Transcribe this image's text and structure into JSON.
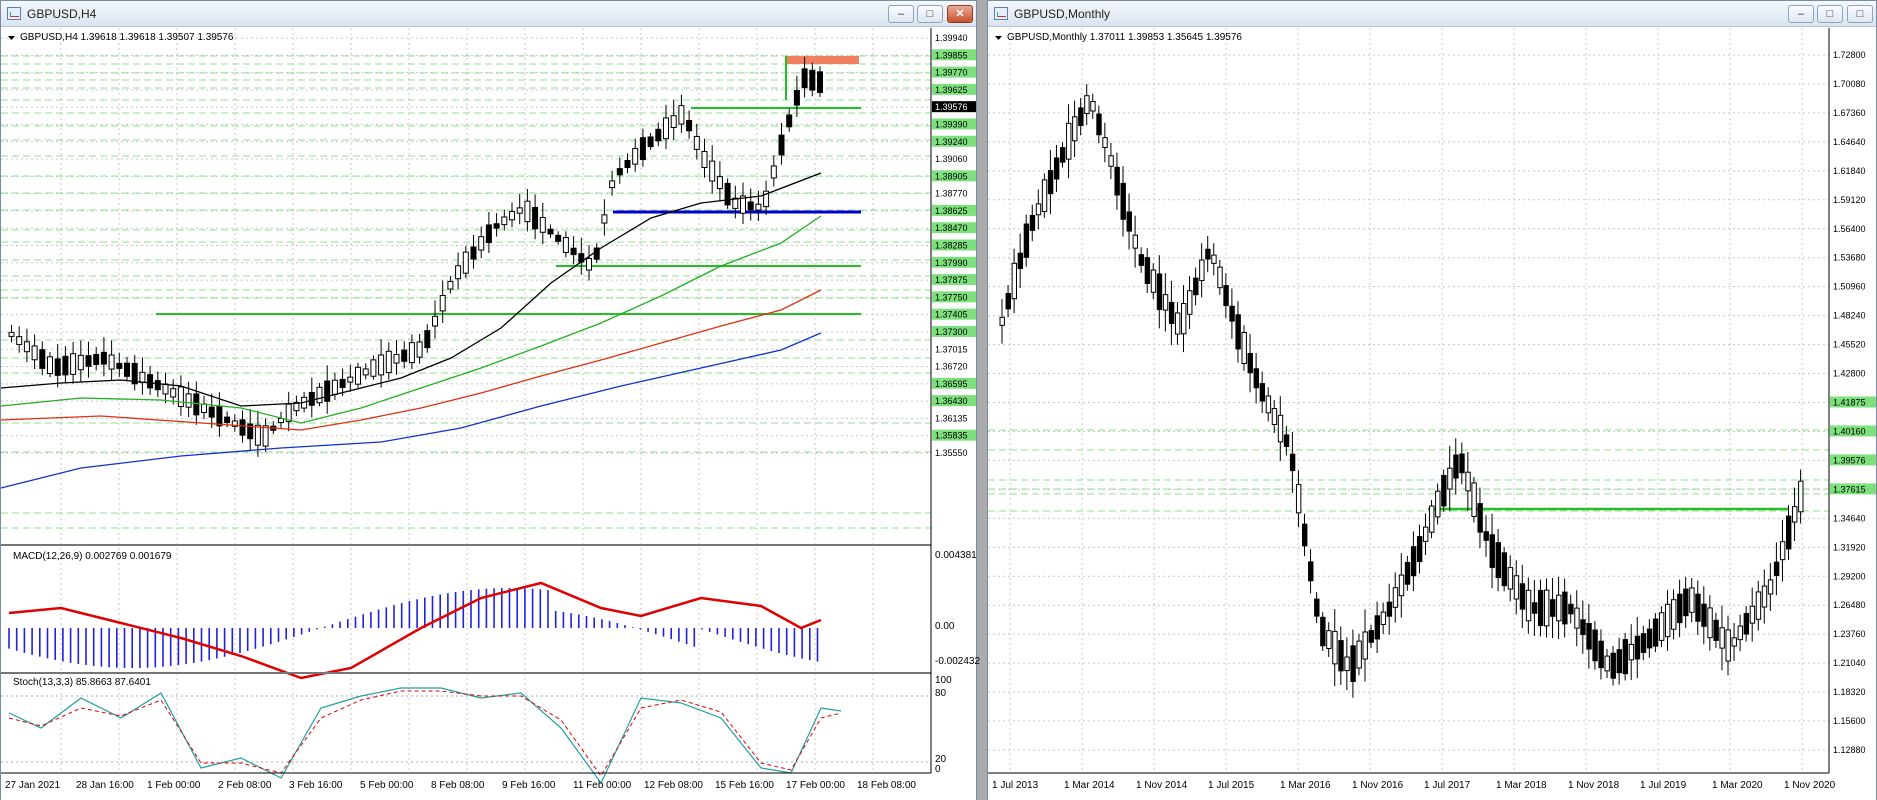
{
  "windows": [
    {
      "title": "GBPUSD,H4",
      "header": "GBPUSD,H4  1.39618 1.39618 1.39507 1.39576",
      "price_labels": [
        "1.39940",
        "1.39855",
        "1.39770",
        "1.39625",
        "1.39576",
        "1.39390",
        "1.39240",
        "1.39060",
        "1.38905",
        "1.38770",
        "1.38625",
        "1.38470",
        "1.38285",
        "1.37990",
        "1.37875",
        "1.37750",
        "1.37405",
        "1.37300",
        "1.37015",
        "1.36720",
        "1.36595",
        "1.36430",
        "1.36135",
        "1.35835",
        "1.35550"
      ],
      "macd": {
        "label": "MACD(12,26,9) 0.002769 0.001679",
        "scale": [
          "0.004381",
          "0.00",
          "-0.002432"
        ]
      },
      "stoch": {
        "label": "Stoch(13,3,3) 85.8663 87.6401",
        "scale": [
          "100",
          "80",
          "20",
          "0"
        ]
      },
      "time_labels": [
        "27 Jan 2021",
        "28 Jan 16:00",
        "1 Feb 00:00",
        "2 Feb 08:00",
        "3 Feb 16:00",
        "5 Feb 00:00",
        "8 Feb 08:00",
        "9 Feb 16:00",
        "11 Feb 00:00",
        "12 Feb 08:00",
        "15 Feb 16:00",
        "17 Feb 00:00",
        "18 Feb 08:00"
      ]
    },
    {
      "title": "GBPUSD,Monthly",
      "header": "GBPUSD,Monthly  1.37011 1.39853 1.35645 1.39576",
      "price_labels": [
        "1.72800",
        "1.70080",
        "1.67360",
        "1.64640",
        "1.61840",
        "1.59120",
        "1.56400",
        "1.53680",
        "1.50960",
        "1.48240",
        "1.45520",
        "1.42800",
        "1.41875",
        "1.40160",
        "1.39576",
        "1.37615",
        "1.34640",
        "1.31920",
        "1.29200",
        "1.26480",
        "1.23760",
        "1.21040",
        "1.18320",
        "1.15600",
        "1.12880"
      ],
      "time_labels": [
        "1 Jul 2013",
        "1 Mar 2014",
        "1 Nov 2014",
        "1 Jul 2015",
        "1 Mar 2016",
        "1 Nov 2016",
        "1 Jul 2017",
        "1 Mar 2018",
        "1 Nov 2018",
        "1 Jul 2019",
        "1 Mar 2020",
        "1 Nov 2020"
      ]
    }
  ],
  "window_buttons": {
    "minimize": "‒",
    "maximize": "□",
    "close": "✕"
  },
  "colors": {
    "bull_candle": "#ffffff",
    "bear_candle": "#000000",
    "grid": "#c8c8c8",
    "support_green": "#22c022",
    "level_blue": "#0000cc",
    "resistance_fill": "#f08060",
    "ma_black": "#000000",
    "ma_green": "#20b020",
    "ma_red": "#e03010",
    "ma_blue": "#1030d0",
    "macd_hist": "#2020e0",
    "macd_signal": "#e00000",
    "stoch_main": "#20a0a0",
    "stoch_signal": "#e00000",
    "label_fill": "#7de07d"
  }
}
